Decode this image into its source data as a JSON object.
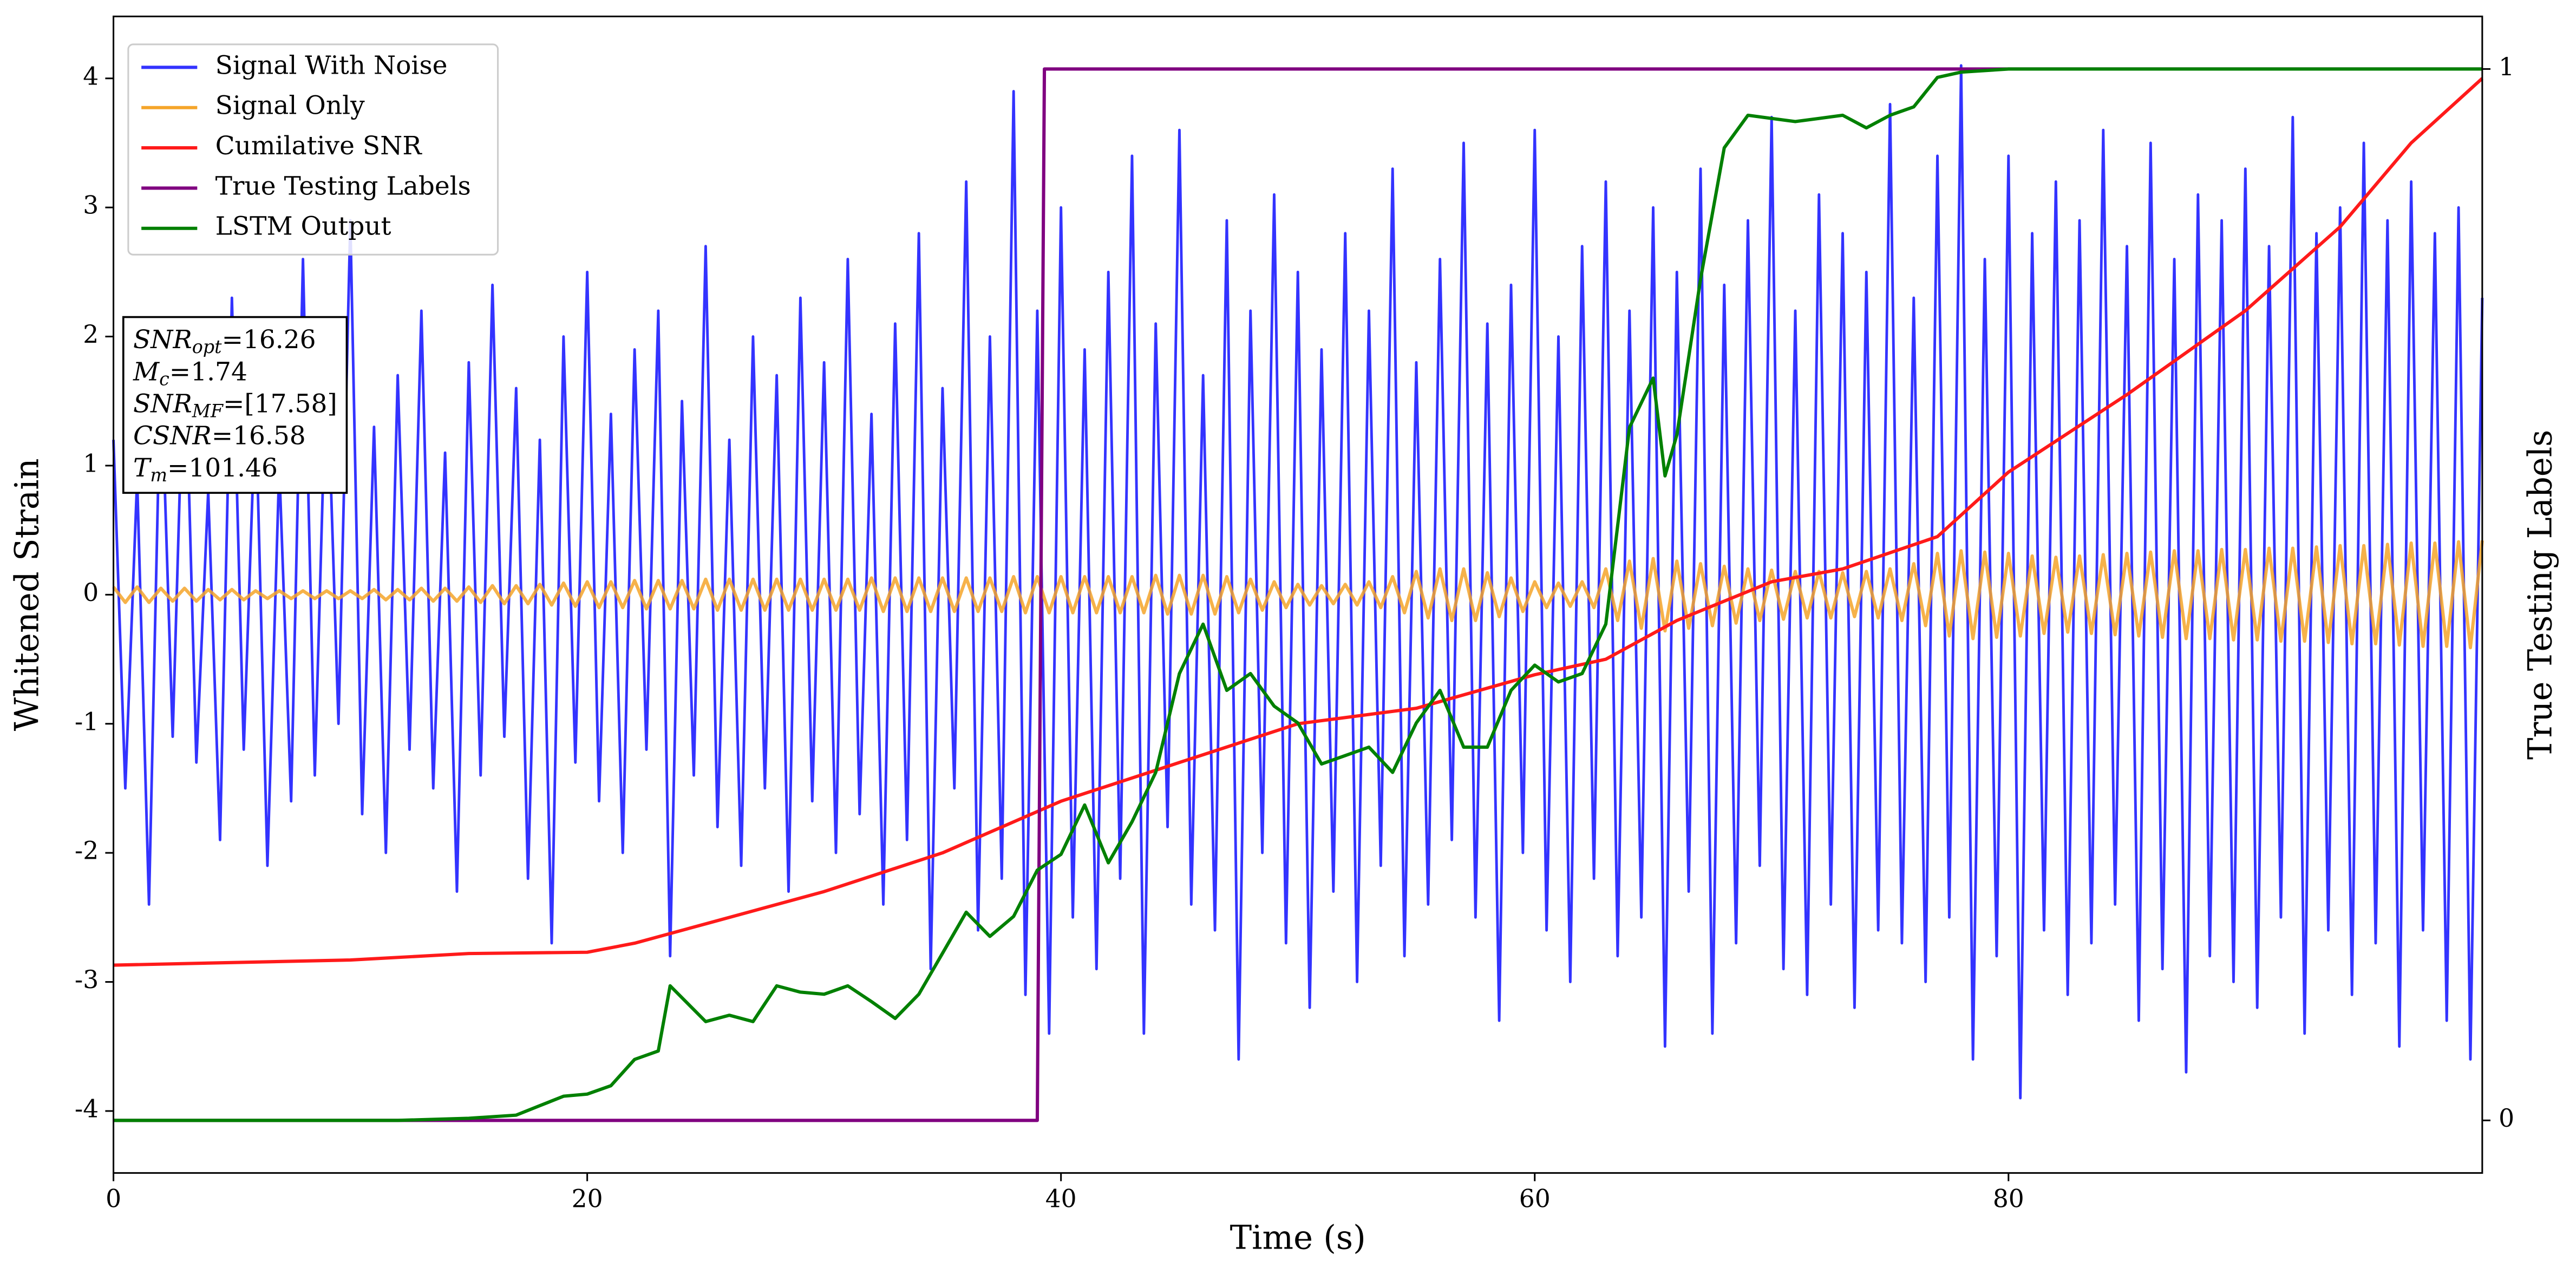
{
  "chart_data": {
    "type": "line",
    "xlabel": "Time (s)",
    "ylabel": "Whitened Strain",
    "y2label": "True Testing Labels",
    "xlim": [
      0,
      100
    ],
    "ylim": [
      -4.48,
      4.48
    ],
    "y2lim": [
      -0.05,
      1.05
    ],
    "xticks": [
      0,
      20,
      40,
      60,
      80
    ],
    "yticks": [
      -4,
      -3,
      -2,
      -1,
      0,
      1,
      2,
      3,
      4
    ],
    "y2ticks": [
      0,
      1
    ],
    "legend": "upper left",
    "x": [
      0,
      0.5,
      1,
      1.5,
      2,
      2.5,
      3,
      3.5,
      4,
      4.5,
      5,
      5.5,
      6,
      6.5,
      7,
      7.5,
      8,
      8.5,
      9,
      9.5,
      10,
      10.5,
      11,
      11.5,
      12,
      12.5,
      13,
      13.5,
      14,
      14.5,
      15,
      15.5,
      16,
      16.5,
      17,
      17.5,
      18,
      18.5,
      19,
      19.5,
      20,
      20.5,
      21,
      21.5,
      22,
      22.5,
      23,
      23.5,
      24,
      24.5,
      25,
      25.5,
      26,
      26.5,
      27,
      27.5,
      28,
      28.5,
      29,
      29.5,
      30,
      30.5,
      31,
      31.5,
      32,
      32.5,
      33,
      33.5,
      34,
      34.5,
      35,
      35.5,
      36,
      36.5,
      37,
      37.5,
      38,
      38.5,
      39,
      39.5,
      40,
      40.5,
      41,
      41.5,
      42,
      42.5,
      43,
      43.5,
      44,
      44.5,
      45,
      45.5,
      46,
      46.5,
      47,
      47.5,
      48,
      48.5,
      49,
      49.5,
      50,
      50.5,
      51,
      51.5,
      52,
      52.5,
      53,
      53.5,
      54,
      54.5,
      55,
      55.5,
      56,
      56.5,
      57,
      57.5,
      58,
      58.5,
      59,
      59.5,
      60,
      60.5,
      61,
      61.5,
      62,
      62.5,
      63,
      63.5,
      64,
      64.5,
      65,
      65.5,
      66,
      66.5,
      67,
      67.5,
      68,
      68.5,
      69,
      69.5,
      70,
      70.5,
      71,
      71.5,
      72,
      72.5,
      73,
      73.5,
      74,
      74.5,
      75,
      75.5,
      76,
      76.5,
      77,
      77.5,
      78,
      78.5,
      79,
      79.5,
      80,
      80.5,
      81,
      81.5,
      82,
      82.5,
      83,
      83.5,
      84,
      84.5,
      85,
      85.5,
      86,
      86.5,
      87,
      87.5,
      88,
      88.5,
      89,
      89.5,
      90,
      90.5,
      91,
      91.5,
      92,
      92.5,
      93,
      93.5,
      94,
      94.5,
      95,
      95.5,
      96,
      96.5,
      97,
      97.5,
      98,
      98.5,
      99,
      99.5,
      100
    ],
    "series": [
      {
        "name": "Signal With Noise",
        "color": "#3333ff",
        "values": [
          1.2,
          -1.5,
          0.9,
          -2.4,
          1.8,
          -1.1,
          2.1,
          -1.3,
          0.8,
          -1.9,
          2.3,
          -1.2,
          1.5,
          -2.1,
          1.0,
          -1.6,
          2.6,
          -1.4,
          1.9,
          -1.0,
          2.9,
          -1.7,
          1.3,
          -2.0,
          1.7,
          -1.2,
          2.2,
          -1.5,
          1.1,
          -2.3,
          1.8,
          -1.4,
          2.4,
          -1.1,
          1.6,
          -2.2,
          1.2,
          -2.7,
          2.0,
          -1.3,
          2.5,
          -1.6,
          1.4,
          -2.0,
          1.9,
          -1.2,
          2.2,
          -2.8,
          1.5,
          -1.4,
          2.7,
          -1.8,
          1.2,
          -2.1,
          2.0,
          -1.5,
          1.7,
          -2.3,
          2.3,
          -1.6,
          1.8,
          -2.0,
          2.6,
          -1.7,
          1.4,
          -2.4,
          2.1,
          -1.9,
          2.8,
          -2.9,
          1.6,
          -1.5,
          3.2,
          -2.6,
          2.0,
          -2.2,
          3.9,
          -3.1,
          2.2,
          -3.4,
          3.0,
          -2.5,
          1.9,
          -2.9,
          2.5,
          -2.2,
          3.4,
          -3.4,
          2.1,
          -1.8,
          3.6,
          -2.4,
          1.7,
          -2.6,
          2.9,
          -3.6,
          2.2,
          -2.0,
          3.1,
          -2.7,
          2.5,
          -3.2,
          1.9,
          -2.3,
          2.8,
          -3.0,
          2.2,
          -2.1,
          3.3,
          -2.8,
          1.8,
          -2.4,
          2.6,
          -1.9,
          3.5,
          -2.5,
          2.1,
          -3.3,
          2.4,
          -2.0,
          3.6,
          -2.6,
          2.0,
          -3.0,
          2.7,
          -2.2,
          3.2,
          -2.8,
          2.2,
          -2.5,
          3.0,
          -3.5,
          2.5,
          -2.3,
          3.3,
          -3.4,
          2.4,
          -2.7,
          2.9,
          -2.1,
          3.7,
          -2.9,
          2.2,
          -3.1,
          3.1,
          -2.4,
          2.8,
          -3.2,
          2.5,
          -2.6,
          3.8,
          -2.7,
          2.3,
          -3.0,
          3.4,
          -2.5,
          4.1,
          -3.6,
          2.6,
          -2.8,
          3.4,
          -3.9,
          2.8,
          -2.6,
          3.2,
          -3.1,
          2.9,
          -2.7,
          3.6,
          -2.4,
          2.7,
          -3.3,
          3.5,
          -2.9,
          2.6,
          -3.7,
          3.1,
          -2.8,
          2.9,
          -3.0,
          3.3,
          -3.2,
          2.7,
          -2.5,
          3.7,
          -3.4,
          2.8,
          -2.6,
          3.0,
          -3.1,
          3.5,
          -2.7,
          2.9,
          -3.5,
          3.2,
          -2.6,
          2.8,
          -3.3,
          3.0,
          -3.6,
          2.3
        ]
      },
      {
        "name": "Signal Only",
        "color": "#f5a52a",
        "values": [
          0.06,
          -0.06,
          0.06,
          -0.06,
          0.05,
          -0.05,
          0.05,
          -0.05,
          0.04,
          -0.04,
          0.04,
          -0.04,
          0.03,
          -0.03,
          0.03,
          -0.03,
          0.03,
          -0.03,
          0.03,
          -0.03,
          0.03,
          -0.03,
          0.04,
          -0.04,
          0.04,
          -0.04,
          0.05,
          -0.05,
          0.05,
          -0.05,
          0.06,
          -0.06,
          0.07,
          -0.07,
          0.07,
          -0.07,
          0.08,
          -0.08,
          0.09,
          -0.09,
          0.1,
          -0.1,
          0.1,
          -0.1,
          0.11,
          -0.11,
          0.11,
          -0.11,
          0.11,
          -0.11,
          0.12,
          -0.12,
          0.12,
          -0.12,
          0.12,
          -0.12,
          0.12,
          -0.12,
          0.12,
          -0.12,
          0.12,
          -0.12,
          0.12,
          -0.12,
          0.13,
          -0.13,
          0.13,
          -0.13,
          0.13,
          -0.13,
          0.13,
          -0.13,
          0.13,
          -0.13,
          0.13,
          -0.13,
          0.14,
          -0.14,
          0.14,
          -0.14,
          0.14,
          -0.14,
          0.14,
          -0.14,
          0.14,
          -0.14,
          0.14,
          -0.14,
          0.15,
          -0.15,
          0.15,
          -0.15,
          0.15,
          -0.15,
          0.14,
          -0.14,
          0.12,
          -0.12,
          0.1,
          -0.1,
          0.08,
          -0.08,
          0.07,
          -0.07,
          0.08,
          -0.08,
          0.1,
          -0.1,
          0.14,
          -0.14,
          0.18,
          -0.18,
          0.2,
          -0.2,
          0.2,
          -0.2,
          0.17,
          -0.17,
          0.13,
          -0.13,
          0.1,
          -0.1,
          0.09,
          -0.09,
          0.1,
          -0.1,
          0.2,
          -0.2,
          0.26,
          -0.26,
          0.28,
          -0.28,
          0.26,
          -0.26,
          0.24,
          -0.24,
          0.22,
          -0.22,
          0.2,
          -0.2,
          0.19,
          -0.19,
          0.18,
          -0.18,
          0.18,
          -0.18,
          0.17,
          -0.17,
          0.18,
          -0.18,
          0.2,
          -0.2,
          0.24,
          -0.24,
          0.32,
          -0.32,
          0.34,
          -0.34,
          0.33,
          -0.33,
          0.32,
          -0.32,
          0.3,
          -0.3,
          0.29,
          -0.29,
          0.3,
          -0.3,
          0.31,
          -0.31,
          0.32,
          -0.32,
          0.33,
          -0.33,
          0.34,
          -0.34,
          0.34,
          -0.34,
          0.35,
          -0.35,
          0.35,
          -0.35,
          0.36,
          -0.36,
          0.36,
          -0.36,
          0.37,
          -0.37,
          0.38,
          -0.38,
          0.38,
          -0.38,
          0.39,
          -0.39,
          0.4,
          -0.4,
          0.4,
          -0.4,
          0.41,
          -0.41,
          0.42
        ]
      },
      {
        "name": "Cumilative SNR",
        "color": "#ff1a1a",
        "x": [
          0,
          10,
          15,
          20,
          22,
          25,
          30,
          35,
          40,
          45,
          50,
          55,
          60,
          63,
          66,
          70,
          73,
          77,
          80,
          85,
          90,
          94,
          97,
          100
        ],
        "values": [
          -2.87,
          -2.83,
          -2.78,
          -2.77,
          -2.7,
          -2.55,
          -2.3,
          -2.0,
          -1.6,
          -1.3,
          -1.0,
          -0.88,
          -0.62,
          -0.5,
          -0.2,
          0.1,
          0.2,
          0.45,
          0.95,
          1.55,
          2.2,
          2.85,
          3.5,
          4.0
        ]
      },
      {
        "name": "True Testing Labels",
        "color": "#800080",
        "axis": "y2",
        "x": [
          0,
          39,
          39.3,
          100
        ],
        "values": [
          0,
          0,
          1,
          1
        ]
      },
      {
        "name": "LSTM Output",
        "color": "#008000",
        "axis": "y2",
        "x": [
          0,
          12,
          15,
          17,
          18,
          19,
          20,
          21,
          22,
          23,
          23.5,
          25,
          26,
          27,
          28,
          29,
          30,
          31,
          32,
          33,
          34,
          35,
          36,
          37,
          38,
          39,
          40,
          41,
          42,
          43,
          44,
          45,
          46,
          47,
          48,
          49,
          50,
          51,
          52,
          53,
          54,
          55,
          56,
          57,
          58,
          59,
          60,
          61,
          62,
          63,
          64,
          65,
          65.5,
          66,
          67,
          68,
          69,
          70,
          71,
          72,
          73,
          74,
          75,
          76,
          77,
          78,
          80,
          100
        ],
        "values": [
          0,
          0,
          0.002,
          0.005,
          0.014,
          0.023,
          0.025,
          0.033,
          0.058,
          0.066,
          0.128,
          0.094,
          0.1,
          0.094,
          0.128,
          0.122,
          0.12,
          0.128,
          0.113,
          0.097,
          0.12,
          0.159,
          0.198,
          0.175,
          0.194,
          0.238,
          0.253,
          0.3,
          0.245,
          0.284,
          0.331,
          0.425,
          0.472,
          0.409,
          0.425,
          0.394,
          0.378,
          0.339,
          0.347,
          0.355,
          0.331,
          0.378,
          0.409,
          0.355,
          0.355,
          0.409,
          0.433,
          0.417,
          0.425,
          0.472,
          0.659,
          0.706,
          0.613,
          0.652,
          0.8,
          0.925,
          0.956,
          0.953,
          0.95,
          0.953,
          0.956,
          0.944,
          0.956,
          0.964,
          0.992,
          0.997,
          1,
          1
        ]
      }
    ],
    "annotations": [
      {
        "var": "SNR",
        "sub": "opt",
        "rest": "=16.26"
      },
      {
        "var": "M",
        "sub": "c",
        "rest": "=1.74"
      },
      {
        "var": "SNR",
        "sub": "MF",
        "rest": "=[17.58]"
      },
      {
        "var": "CSNR",
        "rest": "=16.58"
      },
      {
        "var": "T",
        "sub": "m",
        "rest": "=101.46"
      }
    ]
  }
}
